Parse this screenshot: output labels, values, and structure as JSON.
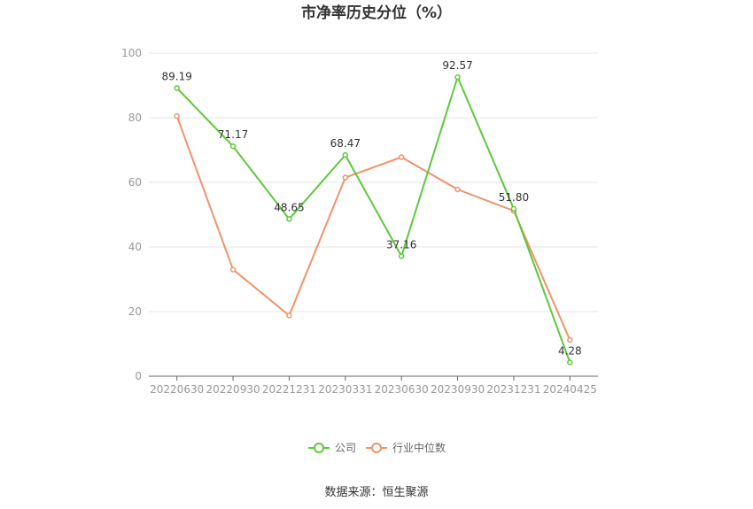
{
  "chart_data": {
    "type": "line",
    "title": "市净率历史分位（%）",
    "categories": [
      "20220630",
      "20220930",
      "20221231",
      "20230331",
      "20230630",
      "20230930",
      "20231231",
      "20240425"
    ],
    "series": [
      {
        "name": "公司",
        "color": "#5cc93b",
        "values": [
          89.19,
          71.17,
          48.65,
          68.47,
          37.16,
          92.57,
          51.8,
          4.28
        ],
        "labels": [
          "89.19",
          "71.17",
          "48.65",
          "68.47",
          "37.16",
          "92.57",
          "51.80",
          "4.28"
        ]
      },
      {
        "name": "行业中位数",
        "color": "#f0936b",
        "values": [
          80.5,
          33.0,
          18.8,
          61.5,
          67.8,
          57.8,
          51.2,
          11.2
        ]
      }
    ],
    "ylim": [
      0,
      100
    ],
    "yticks": [
      "0",
      "20",
      "40",
      "60",
      "80",
      "100"
    ],
    "grid": true,
    "legend_position": "bottom-center"
  },
  "source": "数据来源：恒生聚源"
}
